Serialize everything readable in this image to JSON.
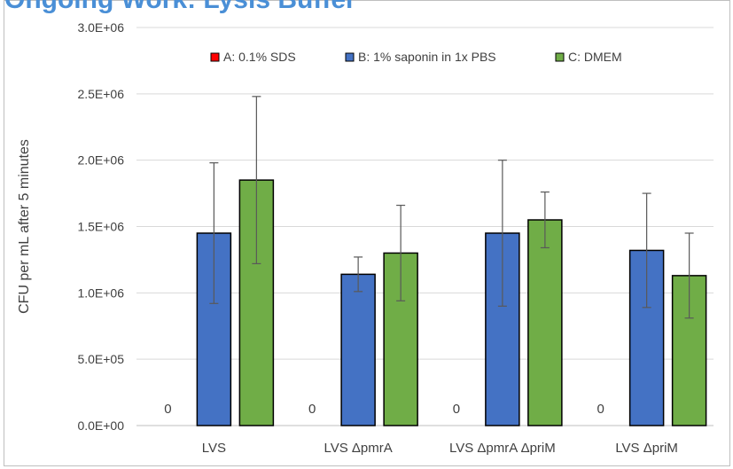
{
  "chart_data": {
    "type": "bar",
    "title": "",
    "xlabel": "",
    "ylabel": "CFU per mL after 5 minutes",
    "ylim": [
      0,
      3000000
    ],
    "ytick_labels": [
      "0.0E+00",
      "5.0E+05",
      "1.0E+06",
      "1.5E+06",
      "2.0E+06",
      "2.5E+06",
      "3.0E+06"
    ],
    "yticks": [
      0,
      500000,
      1000000,
      1500000,
      2000000,
      2500000,
      3000000
    ],
    "grid": true,
    "legend_position": "top",
    "categories": [
      "LVS",
      "LVS ΔpmrA",
      "LVS ΔpmrA ΔpriM",
      "LVS ΔpriM"
    ],
    "series": [
      {
        "name": "A: 0.1% SDS",
        "color": "#ff0000",
        "values": [
          0,
          0,
          0,
          0
        ],
        "errors": [
          0,
          0,
          0,
          0
        ],
        "data_labels": [
          "0",
          "0",
          "0",
          "0"
        ]
      },
      {
        "name": "B: 1% saponin in 1x PBS",
        "color": "#4472c4",
        "values": [
          1450000,
          1140000,
          1450000,
          1320000
        ],
        "errors": [
          530000,
          130000,
          550000,
          430000
        ]
      },
      {
        "name": "C: DMEM",
        "color": "#70ad47",
        "values": [
          1850000,
          1300000,
          1550000,
          1130000
        ],
        "errors": [
          630000,
          360000,
          210000,
          320000
        ]
      }
    ]
  }
}
